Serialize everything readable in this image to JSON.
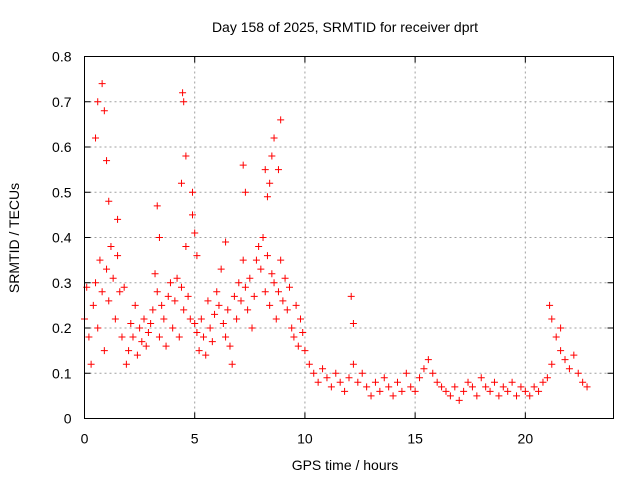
{
  "chart_data": {
    "type": "scatter",
    "title": "Day 158 of 2025, SRMTID for receiver dprt",
    "xlabel": "GPS time / hours",
    "ylabel": "SRMTID / TECUs",
    "xlim": [
      0,
      24
    ],
    "ylim": [
      0,
      0.8
    ],
    "xticks": [
      0,
      5,
      10,
      15,
      20
    ],
    "xtick_labels": [
      "0",
      "5",
      "10",
      "15",
      "20"
    ],
    "yticks": [
      0,
      0.1,
      0.2,
      0.3,
      0.4,
      0.5,
      0.6,
      0.7,
      0.8
    ],
    "ytick_labels": [
      "0",
      "0.1",
      "0.2",
      "0.3",
      "0.4",
      "0.5",
      "0.6",
      "0.7",
      "0.8"
    ],
    "grid": true,
    "marker": "plus",
    "color": "#ff0000",
    "series": [
      {
        "name": "SRMTID",
        "x": [
          0.0,
          0.1,
          0.2,
          0.3,
          0.4,
          0.5,
          0.6,
          0.7,
          0.8,
          0.9,
          1.0,
          1.1,
          1.2,
          1.3,
          1.4,
          1.5,
          1.6,
          1.7,
          1.8,
          1.9,
          2.0,
          2.1,
          2.2,
          2.3,
          2.4,
          2.5,
          2.6,
          2.7,
          2.8,
          2.9,
          3.0,
          3.1,
          3.2,
          3.3,
          3.4,
          3.5,
          3.6,
          3.7,
          3.8,
          3.9,
          4.0,
          4.1,
          4.2,
          4.3,
          4.4,
          4.5,
          4.6,
          4.7,
          4.8,
          4.9,
          5.0,
          5.1,
          5.2,
          5.3,
          5.4,
          5.5,
          5.6,
          5.7,
          5.8,
          5.9,
          6.0,
          6.1,
          6.2,
          6.3,
          6.4,
          6.5,
          6.6,
          6.7,
          6.8,
          6.9,
          7.0,
          7.1,
          7.2,
          7.3,
          7.4,
          7.5,
          7.6,
          7.7,
          7.8,
          7.9,
          8.0,
          8.1,
          8.2,
          8.3,
          8.4,
          8.5,
          8.6,
          8.7,
          8.8,
          8.9,
          9.0,
          9.1,
          9.2,
          9.3,
          9.4,
          9.5,
          9.6,
          9.7,
          9.8,
          9.9,
          10.0,
          10.2,
          10.4,
          10.6,
          10.8,
          11.0,
          11.2,
          11.4,
          11.6,
          11.8,
          12.0,
          12.2,
          12.4,
          12.6,
          12.8,
          13.0,
          13.2,
          13.4,
          13.6,
          13.8,
          14.0,
          14.2,
          14.4,
          14.6,
          14.8,
          15.0,
          15.2,
          15.4,
          15.6,
          15.8,
          16.0,
          16.2,
          16.4,
          16.6,
          16.8,
          17.0,
          17.2,
          17.4,
          17.6,
          17.8,
          18.0,
          18.2,
          18.4,
          18.6,
          18.8,
          19.0,
          19.2,
          19.4,
          19.6,
          19.8,
          20.0,
          20.2,
          20.4,
          20.6,
          20.8,
          21.0,
          21.2,
          21.4,
          21.6,
          21.8,
          22.0,
          22.2,
          22.4,
          22.6,
          22.8,
          0.5,
          0.6,
          0.8,
          0.9,
          1.0,
          1.1,
          1.5,
          3.3,
          3.4,
          4.4,
          4.45,
          4.5,
          4.6,
          4.9,
          5.0,
          5.1,
          6.4,
          7.2,
          7.3,
          8.2,
          8.3,
          8.4,
          8.5,
          8.6,
          8.8,
          8.9,
          12.1,
          12.2,
          21.1,
          21.2,
          21.6
        ],
        "y": [
          0.22,
          0.29,
          0.18,
          0.12,
          0.25,
          0.3,
          0.2,
          0.35,
          0.28,
          0.15,
          0.33,
          0.26,
          0.38,
          0.31,
          0.22,
          0.36,
          0.28,
          0.18,
          0.29,
          0.12,
          0.15,
          0.21,
          0.18,
          0.25,
          0.14,
          0.2,
          0.17,
          0.22,
          0.16,
          0.19,
          0.21,
          0.24,
          0.32,
          0.28,
          0.18,
          0.25,
          0.22,
          0.16,
          0.27,
          0.3,
          0.2,
          0.26,
          0.31,
          0.18,
          0.29,
          0.24,
          0.38,
          0.27,
          0.22,
          0.45,
          0.21,
          0.19,
          0.15,
          0.22,
          0.18,
          0.14,
          0.26,
          0.2,
          0.17,
          0.23,
          0.28,
          0.25,
          0.33,
          0.21,
          0.18,
          0.24,
          0.16,
          0.12,
          0.27,
          0.22,
          0.3,
          0.26,
          0.35,
          0.29,
          0.24,
          0.31,
          0.2,
          0.27,
          0.35,
          0.38,
          0.33,
          0.4,
          0.28,
          0.36,
          0.25,
          0.32,
          0.3,
          0.22,
          0.28,
          0.35,
          0.26,
          0.31,
          0.24,
          0.29,
          0.2,
          0.18,
          0.25,
          0.16,
          0.22,
          0.19,
          0.15,
          0.12,
          0.1,
          0.08,
          0.11,
          0.09,
          0.07,
          0.1,
          0.08,
          0.06,
          0.09,
          0.12,
          0.08,
          0.1,
          0.07,
          0.05,
          0.08,
          0.06,
          0.09,
          0.07,
          0.05,
          0.08,
          0.06,
          0.1,
          0.07,
          0.06,
          0.09,
          0.11,
          0.13,
          0.1,
          0.08,
          0.07,
          0.06,
          0.05,
          0.07,
          0.04,
          0.06,
          0.08,
          0.07,
          0.05,
          0.09,
          0.07,
          0.06,
          0.08,
          0.05,
          0.07,
          0.06,
          0.08,
          0.05,
          0.07,
          0.06,
          0.05,
          0.07,
          0.06,
          0.08,
          0.09,
          0.12,
          0.18,
          0.15,
          0.13,
          0.11,
          0.14,
          0.1,
          0.08,
          0.07,
          0.62,
          0.7,
          0.74,
          0.68,
          0.57,
          0.48,
          0.44,
          0.47,
          0.4,
          0.52,
          0.72,
          0.7,
          0.58,
          0.5,
          0.41,
          0.36,
          0.39,
          0.56,
          0.5,
          0.55,
          0.49,
          0.52,
          0.58,
          0.62,
          0.55,
          0.66,
          0.27,
          0.21,
          0.25,
          0.22,
          0.2
        ]
      }
    ]
  }
}
